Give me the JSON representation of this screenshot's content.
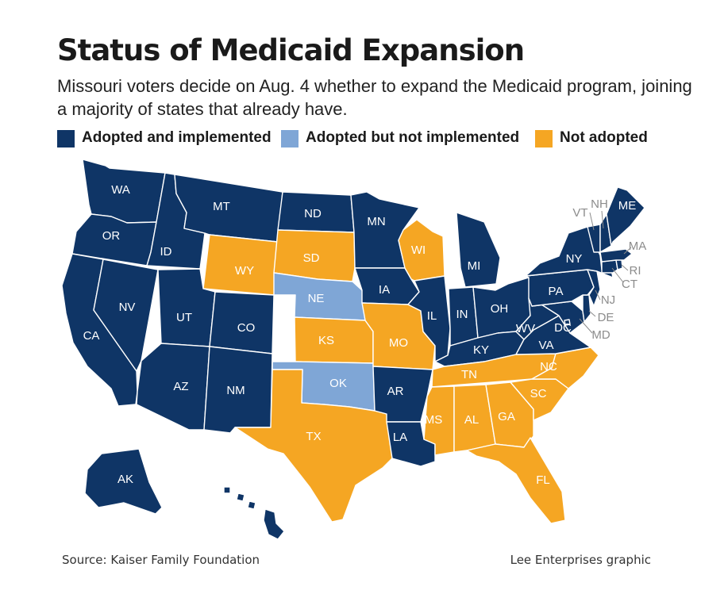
{
  "title": "Status of Medicaid Expansion",
  "subtitle": "Missouri voters decide on Aug. 4 whether to expand the Medicaid program, joining a majority of states that already have.",
  "legend": [
    {
      "label": "Adopted and implemented",
      "status": "adopted",
      "color": "#0f3566"
    },
    {
      "label": "Adopted but not implemented",
      "status": "pending",
      "color": "#7fa6d6"
    },
    {
      "label": "Not adopted",
      "status": "not",
      "color": "#f5a623"
    }
  ],
  "colors": {
    "adopted": "#0f3566",
    "pending": "#7fa6d6",
    "not": "#f5a623",
    "border": "#ffffff",
    "small_label": "#8c8c8c"
  },
  "states": [
    {
      "abbr": "WA",
      "status": "adopted"
    },
    {
      "abbr": "OR",
      "status": "adopted"
    },
    {
      "abbr": "CA",
      "status": "adopted"
    },
    {
      "abbr": "NV",
      "status": "adopted"
    },
    {
      "abbr": "ID",
      "status": "adopted"
    },
    {
      "abbr": "MT",
      "status": "adopted"
    },
    {
      "abbr": "WY",
      "status": "not"
    },
    {
      "abbr": "UT",
      "status": "adopted"
    },
    {
      "abbr": "CO",
      "status": "adopted"
    },
    {
      "abbr": "AZ",
      "status": "adopted"
    },
    {
      "abbr": "NM",
      "status": "adopted"
    },
    {
      "abbr": "ND",
      "status": "adopted"
    },
    {
      "abbr": "SD",
      "status": "not"
    },
    {
      "abbr": "NE",
      "status": "pending"
    },
    {
      "abbr": "KS",
      "status": "not"
    },
    {
      "abbr": "OK",
      "status": "pending"
    },
    {
      "abbr": "TX",
      "status": "not"
    },
    {
      "abbr": "MN",
      "status": "adopted"
    },
    {
      "abbr": "IA",
      "status": "adopted"
    },
    {
      "abbr": "MO",
      "status": "not"
    },
    {
      "abbr": "AR",
      "status": "adopted"
    },
    {
      "abbr": "LA",
      "status": "adopted"
    },
    {
      "abbr": "WI",
      "status": "not"
    },
    {
      "abbr": "IL",
      "status": "adopted"
    },
    {
      "abbr": "MI",
      "status": "adopted"
    },
    {
      "abbr": "IN",
      "status": "adopted"
    },
    {
      "abbr": "OH",
      "status": "adopted"
    },
    {
      "abbr": "KY",
      "status": "adopted"
    },
    {
      "abbr": "TN",
      "status": "not"
    },
    {
      "abbr": "MS",
      "status": "not"
    },
    {
      "abbr": "AL",
      "status": "not"
    },
    {
      "abbr": "GA",
      "status": "not"
    },
    {
      "abbr": "FL",
      "status": "not"
    },
    {
      "abbr": "SC",
      "status": "not"
    },
    {
      "abbr": "NC",
      "status": "not"
    },
    {
      "abbr": "VA",
      "status": "adopted"
    },
    {
      "abbr": "WV",
      "status": "adopted"
    },
    {
      "abbr": "DC",
      "status": "adopted"
    },
    {
      "abbr": "MD",
      "status": "adopted"
    },
    {
      "abbr": "DE",
      "status": "adopted"
    },
    {
      "abbr": "PA",
      "status": "adopted"
    },
    {
      "abbr": "NJ",
      "status": "adopted"
    },
    {
      "abbr": "NY",
      "status": "adopted"
    },
    {
      "abbr": "CT",
      "status": "adopted"
    },
    {
      "abbr": "RI",
      "status": "adopted"
    },
    {
      "abbr": "MA",
      "status": "adopted"
    },
    {
      "abbr": "VT",
      "status": "adopted"
    },
    {
      "abbr": "NH",
      "status": "adopted"
    },
    {
      "abbr": "ME",
      "status": "adopted"
    },
    {
      "abbr": "AK",
      "status": "adopted"
    },
    {
      "abbr": "HI",
      "status": "adopted"
    }
  ],
  "source": "Source: Kaiser Family Foundation",
  "credit": "Lee Enterprises graphic"
}
